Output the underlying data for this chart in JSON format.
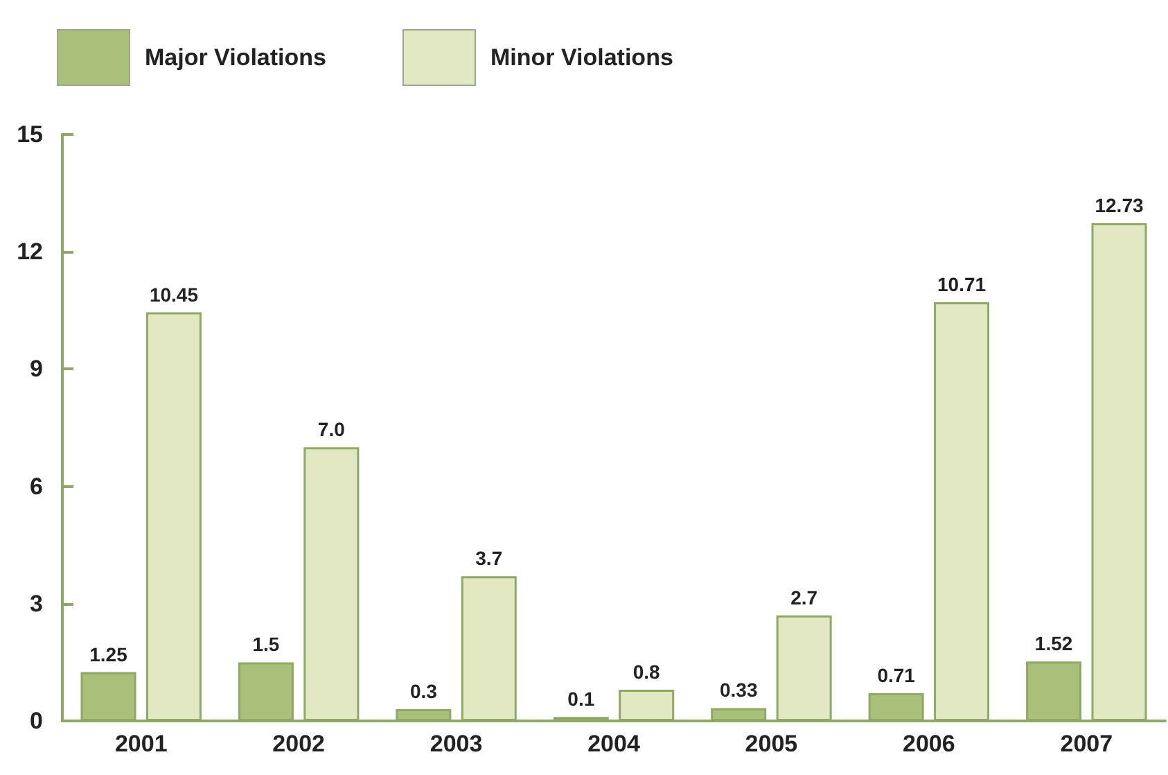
{
  "chart_data": {
    "type": "bar",
    "categories": [
      "2001",
      "2002",
      "2003",
      "2004",
      "2005",
      "2006",
      "2007"
    ],
    "series": [
      {
        "name": "Major Violations",
        "color": "#a9bf7a",
        "values": [
          1.25,
          1.5,
          0.3,
          0.1,
          0.33,
          0.71,
          1.52
        ],
        "value_labels": [
          "1.25",
          "1.5",
          "0.3",
          "0.1",
          "0.33",
          "0.71",
          "1.52"
        ]
      },
      {
        "name": "Minor Violations",
        "color": "#e2e8c2",
        "values": [
          10.45,
          7.0,
          3.7,
          0.8,
          2.7,
          10.71,
          12.73
        ],
        "value_labels": [
          "10.45",
          "7.0",
          "3.7",
          "0.8",
          "2.7",
          "10.71",
          "12.73"
        ]
      }
    ],
    "ylim": [
      0,
      15
    ],
    "yticks": [
      0,
      3,
      6,
      9,
      12,
      15
    ],
    "grid": false,
    "legend": "top left"
  }
}
